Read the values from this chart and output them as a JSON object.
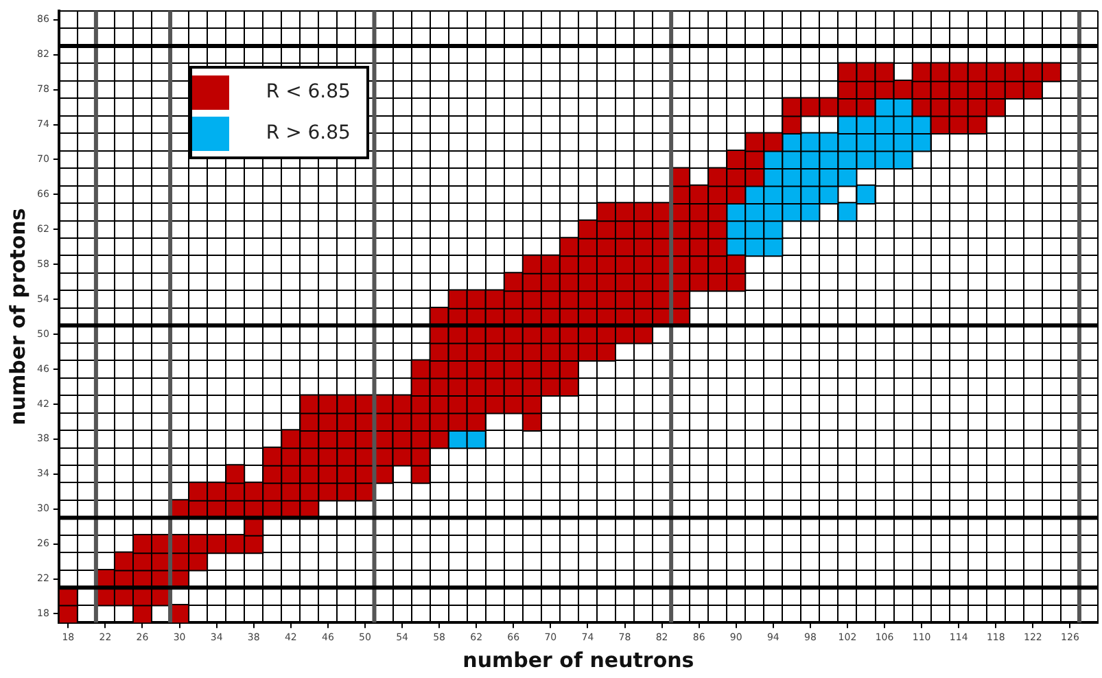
{
  "chart_data": {
    "type": "scatter",
    "xlabel": "number of neutrons",
    "ylabel": "number of protons",
    "marker": "square",
    "grid": true,
    "legend": "top left",
    "xlim": [
      17,
      129
    ],
    "ylim": [
      17,
      87
    ],
    "xticks": [
      {
        "value": 17,
        "label": null
      },
      18,
      {
        "value": 19,
        "label": null
      },
      22,
      {
        "value": 23,
        "label": null
      },
      {
        "value": 25,
        "label": null
      },
      26,
      {
        "value": 27,
        "label": null
      },
      30,
      {
        "value": 31,
        "label": null
      },
      {
        "value": 33,
        "label": null
      },
      34,
      {
        "value": 35,
        "label": null
      },
      {
        "value": 37,
        "label": null
      },
      38,
      {
        "value": 39,
        "label": null
      },
      {
        "value": 41,
        "label": null
      },
      42,
      {
        "value": 43,
        "label": null
      },
      {
        "value": 45,
        "label": null
      },
      46,
      {
        "value": 47,
        "label": null
      },
      {
        "value": 49,
        "label": null
      },
      50,
      {
        "value": 53,
        "label": null
      },
      54,
      {
        "value": 55,
        "label": null
      },
      {
        "value": 57,
        "label": null
      },
      58,
      {
        "value": 59,
        "label": null
      },
      {
        "value": 61,
        "label": null
      },
      62,
      {
        "value": 63,
        "label": null
      },
      {
        "value": 65,
        "label": null
      },
      66,
      {
        "value": 67,
        "label": null
      },
      {
        "value": 69,
        "label": null
      },
      70,
      {
        "value": 71,
        "label": null
      },
      {
        "value": 73,
        "label": null
      },
      74,
      {
        "value": 75,
        "label": null
      },
      {
        "value": 77,
        "label": null
      },
      78,
      {
        "value": 79,
        "label": null
      },
      {
        "value": 81,
        "label": null
      },
      82,
      {
        "value": 85,
        "label": null
      },
      86,
      {
        "value": 87,
        "label": null
      },
      {
        "value": 89,
        "label": null
      },
      90,
      {
        "value": 91,
        "label": null
      },
      {
        "value": 93,
        "label": null
      },
      94,
      {
        "value": 95,
        "label": null
      },
      {
        "value": 97,
        "label": null
      },
      98,
      {
        "value": 99,
        "label": null
      },
      {
        "value": 101,
        "label": null
      },
      102,
      {
        "value": 103,
        "label": null
      },
      {
        "value": 105,
        "label": null
      },
      106,
      {
        "value": 107,
        "label": null
      },
      {
        "value": 109,
        "label": null
      },
      110,
      {
        "value": 111,
        "label": null
      },
      {
        "value": 113,
        "label": null
      },
      114,
      {
        "value": 115,
        "label": null
      },
      {
        "value": 117,
        "label": null
      },
      118,
      {
        "value": 119,
        "label": null
      },
      {
        "value": 121,
        "label": null
      },
      122,
      {
        "value": 123,
        "label": null
      },
      {
        "value": 125,
        "label": null
      },
      126,
      {
        "value": 129,
        "label": null
      }
    ],
    "yticks": [
      {
        "value": 17,
        "label": null
      },
      18,
      {
        "value": 19,
        "label": null
      },
      22,
      {
        "value": 23,
        "label": null
      },
      {
        "value": 25,
        "label": null
      },
      26,
      {
        "value": 27,
        "label": null
      },
      30,
      {
        "value": 31,
        "label": null
      },
      {
        "value": 33,
        "label": null
      },
      34,
      {
        "value": 35,
        "label": null
      },
      {
        "value": 37,
        "label": null
      },
      38,
      {
        "value": 39,
        "label": null
      },
      {
        "value": 41,
        "label": null
      },
      42,
      {
        "value": 43,
        "label": null
      },
      {
        "value": 45,
        "label": null
      },
      46,
      {
        "value": 47,
        "label": null
      },
      {
        "value": 49,
        "label": null
      },
      50,
      {
        "value": 53,
        "label": null
      },
      54,
      {
        "value": 55,
        "label": null
      },
      {
        "value": 57,
        "label": null
      },
      58,
      {
        "value": 59,
        "label": null
      },
      {
        "value": 61,
        "label": null
      },
      62,
      {
        "value": 63,
        "label": null
      },
      {
        "value": 65,
        "label": null
      },
      66,
      {
        "value": 67,
        "label": null
      },
      {
        "value": 69,
        "label": null
      },
      70,
      {
        "value": 71,
        "label": null
      },
      {
        "value": 73,
        "label": null
      },
      74,
      {
        "value": 75,
        "label": null
      },
      {
        "value": 77,
        "label": null
      },
      78,
      {
        "value": 79,
        "label": null
      },
      {
        "value": 81,
        "label": null
      },
      82,
      {
        "value": 85,
        "label": null
      },
      86,
      {
        "value": 87,
        "label": null
      }
    ],
    "ref_lines": [
      {
        "axis": "x",
        "value": 21,
        "color": "#555555"
      },
      {
        "axis": "x",
        "value": 29,
        "color": "#555555"
      },
      {
        "axis": "x",
        "value": 51,
        "color": "#555555"
      },
      {
        "axis": "x",
        "value": 83,
        "color": "#555555"
      },
      {
        "axis": "x",
        "value": 127,
        "color": "#555555"
      },
      {
        "axis": "y",
        "value": 21,
        "color": "#000000"
      },
      {
        "axis": "y",
        "value": 29,
        "color": "#000000"
      },
      {
        "axis": "y",
        "value": 51,
        "color": "#000000"
      },
      {
        "axis": "y",
        "value": 83,
        "color": "#000000"
      }
    ],
    "series": [
      {
        "name": "R < 6.85",
        "color": "#c00000",
        "x": [
          18,
          26,
          30,
          18,
          22,
          24,
          26,
          28,
          22,
          24,
          26,
          28,
          30,
          24,
          26,
          28,
          30,
          32,
          26,
          28,
          30,
          32,
          34,
          36,
          38,
          38,
          30,
          32,
          34,
          36,
          38,
          40,
          42,
          44,
          32,
          34,
          36,
          38,
          40,
          42,
          44,
          46,
          48,
          50,
          36,
          40,
          42,
          44,
          46,
          48,
          50,
          52,
          56,
          40,
          42,
          44,
          46,
          48,
          50,
          52,
          54,
          56,
          42,
          44,
          46,
          48,
          50,
          52,
          54,
          56,
          58,
          44,
          46,
          48,
          50,
          52,
          54,
          56,
          58,
          60,
          62,
          68,
          44,
          46,
          48,
          50,
          52,
          54,
          56,
          58,
          60,
          62,
          64,
          66,
          68,
          56,
          58,
          60,
          62,
          64,
          66,
          68,
          70,
          72,
          56,
          58,
          60,
          62,
          64,
          66,
          68,
          70,
          72,
          58,
          60,
          62,
          64,
          66,
          68,
          70,
          72,
          74,
          76,
          58,
          60,
          62,
          64,
          66,
          68,
          70,
          72,
          74,
          76,
          78,
          80,
          58,
          60,
          62,
          64,
          66,
          68,
          70,
          72,
          74,
          76,
          78,
          80,
          82,
          84,
          60,
          62,
          64,
          66,
          68,
          70,
          72,
          74,
          76,
          78,
          80,
          82,
          84,
          66,
          68,
          70,
          72,
          74,
          76,
          78,
          80,
          82,
          84,
          86,
          88,
          90,
          68,
          70,
          72,
          74,
          76,
          78,
          80,
          82,
          84,
          86,
          88,
          90,
          72,
          74,
          76,
          78,
          80,
          82,
          84,
          86,
          88,
          74,
          76,
          78,
          80,
          82,
          84,
          86,
          88,
          76,
          78,
          80,
          82,
          84,
          86,
          88,
          84,
          86,
          88,
          90,
          84,
          88,
          90,
          92,
          90,
          92,
          92,
          94,
          96,
          112,
          114,
          116,
          96,
          98,
          100,
          102,
          104,
          110,
          112,
          114,
          116,
          118,
          102,
          104,
          106,
          108,
          110,
          112,
          114,
          116,
          118,
          120,
          122,
          102,
          104,
          106,
          110,
          112,
          114,
          116,
          118,
          120,
          122,
          124
        ],
        "values": [
          18,
          18,
          18,
          20,
          20,
          20,
          20,
          20,
          22,
          22,
          22,
          22,
          22,
          24,
          24,
          24,
          24,
          24,
          26,
          26,
          26,
          26,
          26,
          26,
          26,
          28,
          30,
          30,
          30,
          30,
          30,
          30,
          30,
          30,
          32,
          32,
          32,
          32,
          32,
          32,
          32,
          32,
          32,
          32,
          34,
          34,
          34,
          34,
          34,
          34,
          34,
          34,
          34,
          36,
          36,
          36,
          36,
          36,
          36,
          36,
          36,
          36,
          38,
          38,
          38,
          38,
          38,
          38,
          38,
          38,
          38,
          40,
          40,
          40,
          40,
          40,
          40,
          40,
          40,
          40,
          40,
          40,
          42,
          42,
          42,
          42,
          42,
          42,
          42,
          42,
          42,
          42,
          42,
          42,
          42,
          44,
          44,
          44,
          44,
          44,
          44,
          44,
          44,
          44,
          46,
          46,
          46,
          46,
          46,
          46,
          46,
          46,
          46,
          48,
          48,
          48,
          48,
          48,
          48,
          48,
          48,
          48,
          48,
          50,
          50,
          50,
          50,
          50,
          50,
          50,
          50,
          50,
          50,
          50,
          50,
          52,
          52,
          52,
          52,
          52,
          52,
          52,
          52,
          52,
          52,
          52,
          52,
          52,
          52,
          54,
          54,
          54,
          54,
          54,
          54,
          54,
          54,
          54,
          54,
          54,
          54,
          54,
          56,
          56,
          56,
          56,
          56,
          56,
          56,
          56,
          56,
          56,
          56,
          56,
          56,
          58,
          58,
          58,
          58,
          58,
          58,
          58,
          58,
          58,
          58,
          58,
          58,
          60,
          60,
          60,
          60,
          60,
          60,
          60,
          60,
          60,
          62,
          62,
          62,
          62,
          62,
          62,
          62,
          62,
          64,
          64,
          64,
          64,
          64,
          64,
          64,
          66,
          66,
          66,
          66,
          68,
          68,
          68,
          68,
          70,
          70,
          72,
          72,
          74,
          74,
          74,
          74,
          76,
          76,
          76,
          76,
          76,
          76,
          76,
          76,
          76,
          76,
          78,
          78,
          78,
          78,
          78,
          78,
          78,
          78,
          78,
          78,
          78,
          80,
          80,
          80,
          80,
          80,
          80,
          80,
          80,
          80,
          80,
          80
        ]
      },
      {
        "name": "R > 6.85",
        "color": "#00b0f0",
        "x": [
          60,
          62,
          90,
          92,
          94,
          90,
          92,
          94,
          90,
          92,
          94,
          96,
          98,
          102,
          92,
          94,
          96,
          98,
          100,
          104,
          94,
          96,
          98,
          100,
          102,
          94,
          96,
          98,
          100,
          102,
          104,
          106,
          108,
          96,
          98,
          100,
          102,
          104,
          106,
          108,
          110,
          102,
          104,
          106,
          108,
          110,
          106,
          108
        ],
        "values": [
          38,
          38,
          60,
          60,
          60,
          62,
          62,
          62,
          64,
          64,
          64,
          64,
          64,
          64,
          66,
          66,
          66,
          66,
          66,
          66,
          68,
          68,
          68,
          68,
          68,
          70,
          70,
          70,
          70,
          70,
          70,
          70,
          70,
          72,
          72,
          72,
          72,
          72,
          72,
          72,
          72,
          74,
          74,
          74,
          74,
          74,
          76,
          76
        ]
      }
    ]
  }
}
